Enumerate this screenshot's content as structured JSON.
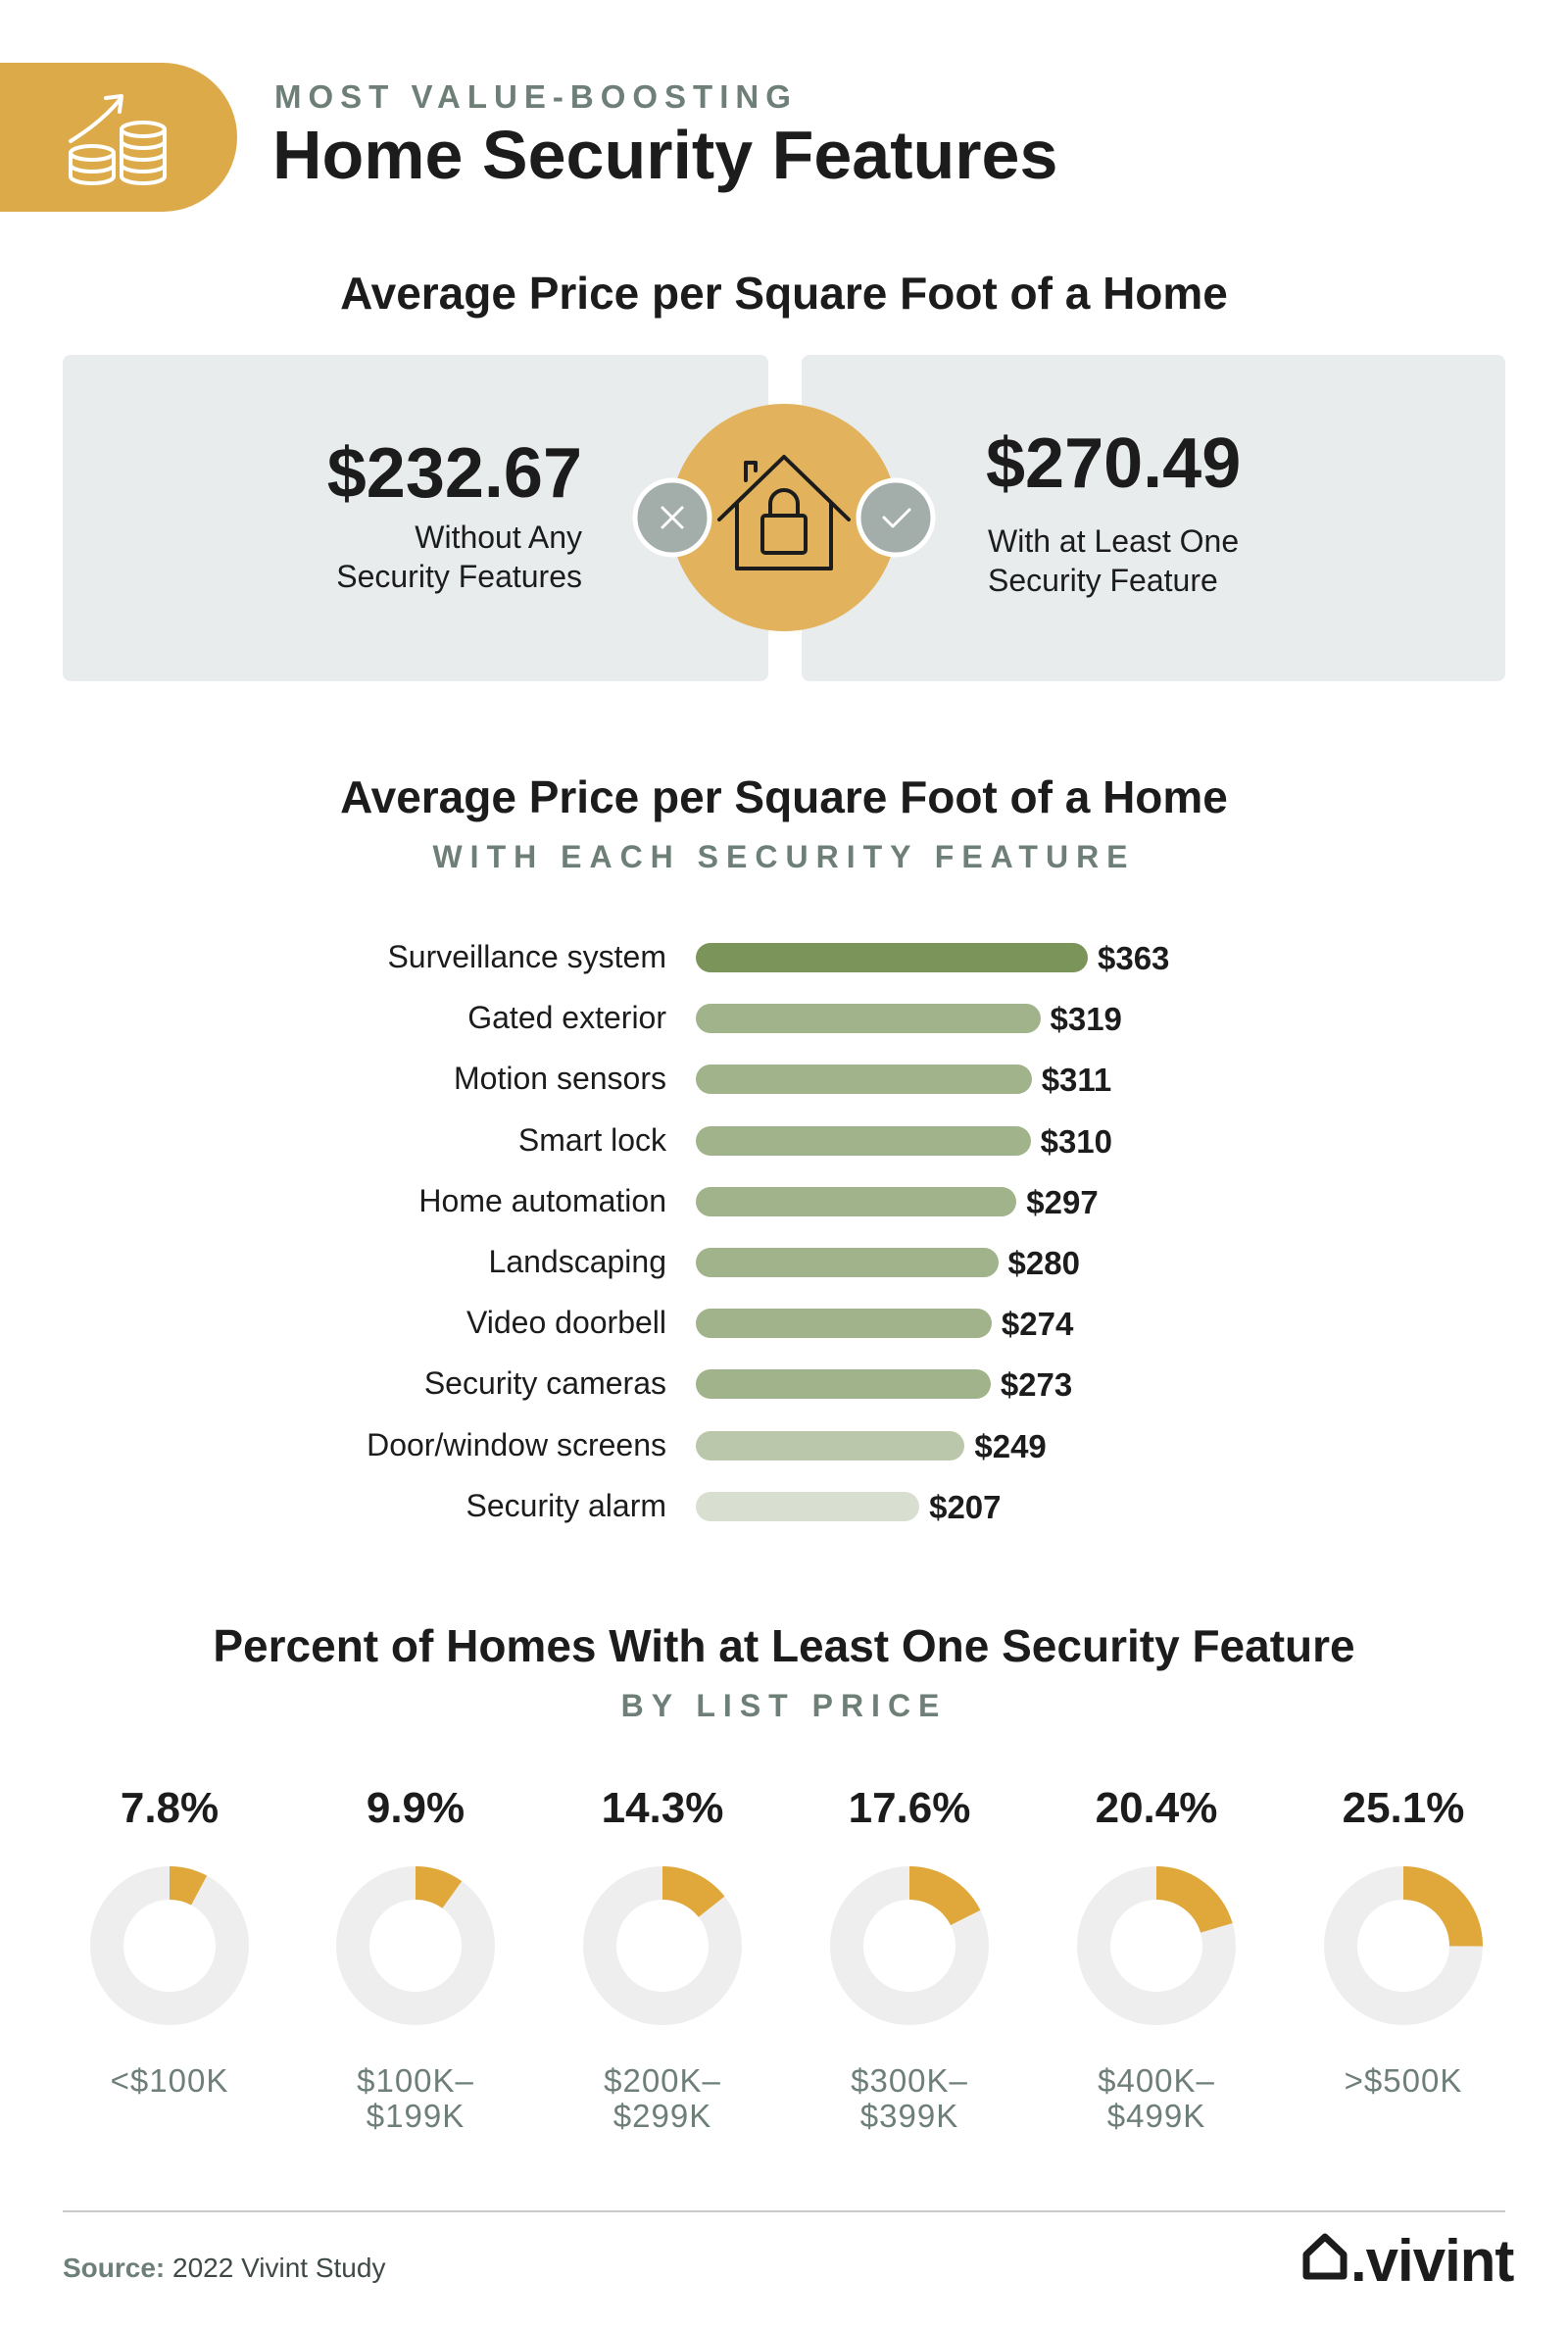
{
  "header": {
    "kicker": "MOST VALUE-BOOSTING",
    "title": "Home Security Features",
    "icon": "growth-coins-icon",
    "accent_color": "#dcaa49"
  },
  "comparison": {
    "title": "Average Price per Square Foot of a Home",
    "without": {
      "value": "$232.67",
      "label_line1": "Without Any",
      "label_line2": "Security Features"
    },
    "with": {
      "value": "$270.49",
      "label_line1": "With at Least One",
      "label_line2": "Security Feature"
    },
    "icons": [
      "x-icon",
      "house-lock-icon",
      "check-icon"
    ]
  },
  "bars_section": {
    "title": "Average Price per Square Foot of a Home",
    "subtitle": "WITH EACH SECURITY FEATURE"
  },
  "donuts_section": {
    "title": "Percent of Homes With at Least One Security Feature",
    "subtitle": "BY LIST PRICE"
  },
  "chart_data": [
    {
      "type": "bar",
      "orientation": "horizontal",
      "categories": [
        "Surveillance system",
        "Gated exterior",
        "Motion sensors",
        "Smart lock",
        "Home automation",
        "Landscaping",
        "Video doorbell",
        "Security cameras",
        "Door/window screens",
        "Security alarm"
      ],
      "values": [
        363,
        319,
        311,
        310,
        297,
        280,
        274,
        273,
        249,
        207
      ],
      "value_labels": [
        "$363",
        "$319",
        "$311",
        "$310",
        "$297",
        "$280",
        "$274",
        "$273",
        "$249",
        "$207"
      ],
      "colors": [
        "#7a9459",
        "#a1b38a",
        "#a1b38a",
        "#a1b38a",
        "#a1b38a",
        "#a1b38a",
        "#a1b38a",
        "#a1b38a",
        "#bbc7aa",
        "#d9dfd0"
      ],
      "xlim": [
        0,
        363
      ],
      "grid": false
    },
    {
      "type": "pie",
      "style": "donut",
      "categories": [
        "<$100K",
        "$100K–\n$199K",
        "$200K–\n$299K",
        "$300K–\n$399K",
        "$400K–\n$499K",
        ">$500K"
      ],
      "values": [
        7.8,
        9.9,
        14.3,
        17.6,
        20.4,
        25.1
      ],
      "value_labels": [
        "7.8%",
        "9.9%",
        "14.3%",
        "17.6%",
        "20.4%",
        "25.1%"
      ],
      "colors": {
        "filled": "#e0a83a",
        "track": "#eeeeee"
      }
    }
  ],
  "footer": {
    "source_label": "Source:",
    "source_text": "2022 Vivint Study",
    "brand": ".vivint",
    "brand_icon": "vivint-house-logo-icon"
  }
}
